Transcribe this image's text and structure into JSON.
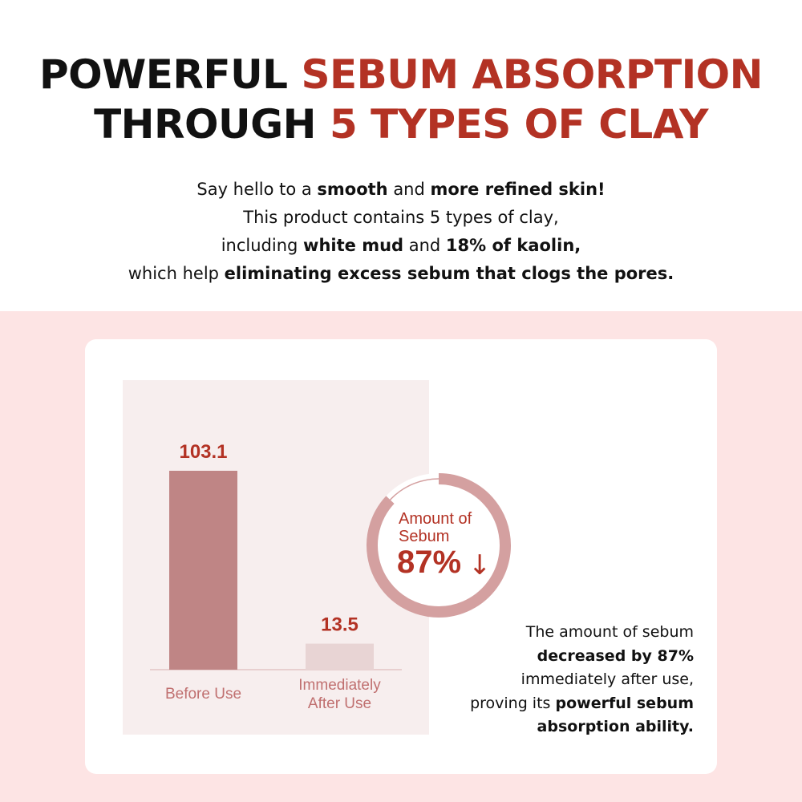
{
  "header": {
    "title_line1_a": "POWERFUL ",
    "title_line1_b": "SEBUM ABSORPTION",
    "title_line2_a": "THROUGH ",
    "title_line2_b": "5 TYPES OF CLAY",
    "sub": [
      [
        "Say hello to a ",
        "smooth",
        " and ",
        "more refined skin!"
      ],
      [
        "This product contains 5 types of clay,"
      ],
      [
        "including ",
        "white mud",
        " and ",
        "18% of kaolin,"
      ],
      [
        "which help ",
        "eliminating excess sebum that clogs the pores."
      ]
    ]
  },
  "colors": {
    "accent": "#b33224",
    "bar_before": "#bf8585",
    "bar_after": "#e8d4d4",
    "ring": "#d4a0a0",
    "background": "#fde4e4",
    "panel": "#f7eeee"
  },
  "chart_data": {
    "type": "bar",
    "categories": [
      "Before Use",
      "Immediately\nAfter Use"
    ],
    "values": [
      103.1,
      13.5
    ],
    "data_labels": [
      "103.1",
      "13.5"
    ],
    "title": "",
    "xlabel": "",
    "ylabel": "",
    "ylim": [
      0,
      103.1
    ],
    "grid": false
  },
  "badge": {
    "line1": "Amount of",
    "line2": "Sebum",
    "value": "87%",
    "arrow": "↓",
    "fraction": 0.87,
    "icon": "down-arrow-icon"
  },
  "description": [
    [
      "The amount of sebum"
    ],
    [
      "decreased by 87%"
    ],
    [
      "immediately after use,"
    ],
    [
      "proving its ",
      "powerful sebum"
    ],
    [
      "absorption ability."
    ]
  ]
}
